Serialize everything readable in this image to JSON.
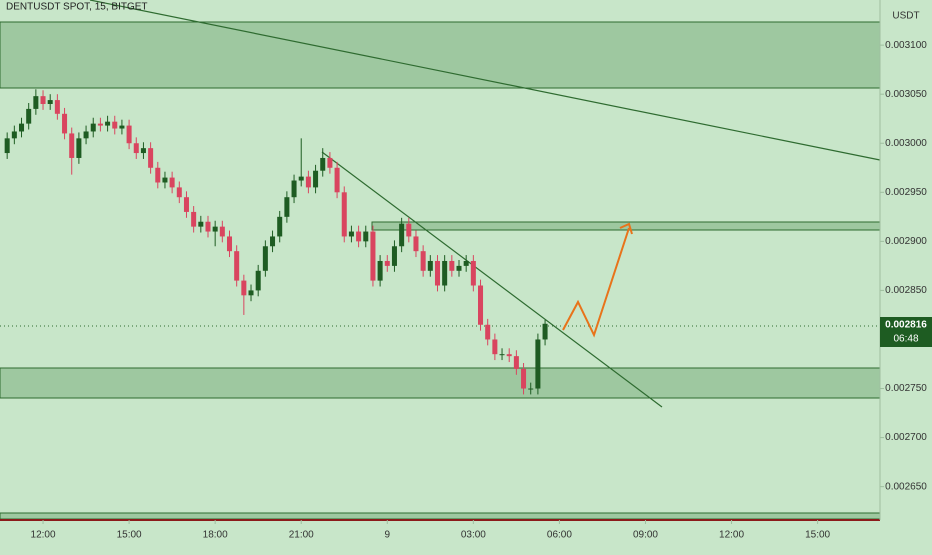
{
  "chart_data": {
    "type": "candlestick",
    "title": "DENTUSDT SPOT, 15, BITGET",
    "y_unit": "USDT",
    "last_price_label": "0.002816",
    "countdown": "06:48",
    "up_color": "#1e5c22",
    "down_color": "#d9455f",
    "xlim": [
      -6,
      116.7
    ],
    "xticks": [
      {
        "value": 0,
        "label": "12:00"
      },
      {
        "value": 12,
        "label": "15:00"
      },
      {
        "value": 24,
        "label": "18:00"
      },
      {
        "value": 36,
        "label": "21:00"
      },
      {
        "value": 48,
        "label": "9"
      },
      {
        "value": 60,
        "label": "03:00"
      },
      {
        "value": 72,
        "label": "06:00"
      },
      {
        "value": 84,
        "label": "09:00"
      },
      {
        "value": 96,
        "label": "12:00"
      },
      {
        "value": 108,
        "label": "15:00"
      }
    ],
    "ylim": [
      0.002616,
      0.003146
    ],
    "yticks": [
      {
        "value": 0.00265,
        "label": "0.002650"
      },
      {
        "value": 0.0027,
        "label": "0.002700"
      },
      {
        "value": 0.00275,
        "label": "0.002750"
      },
      {
        "value": 0.0028,
        "label": "0.002800"
      },
      {
        "value": 0.00285,
        "label": "0.002850"
      },
      {
        "value": 0.0029,
        "label": "0.002900"
      },
      {
        "value": 0.00295,
        "label": "0.002950"
      },
      {
        "value": 0.003,
        "label": "0.003000"
      },
      {
        "value": 0.00305,
        "label": "0.003050"
      },
      {
        "value": 0.0031,
        "label": "0.003100"
      }
    ],
    "x": [
      -5,
      -4,
      -3,
      -2,
      -1,
      0,
      1,
      2,
      3,
      4,
      5,
      6,
      7,
      8,
      9,
      10,
      11,
      12,
      13,
      14,
      15,
      16,
      17,
      18,
      19,
      20,
      21,
      22,
      23,
      24,
      25,
      26,
      27,
      28,
      29,
      30,
      31,
      32,
      33,
      34,
      35,
      36,
      37,
      38,
      39,
      40,
      41,
      42,
      43,
      44,
      45,
      46,
      47,
      48,
      49,
      50,
      51,
      52,
      53,
      54,
      55,
      56,
      57,
      58,
      59,
      60,
      61,
      62,
      63,
      64,
      65,
      66,
      67,
      68,
      69,
      70
    ],
    "open": [
      0.00299,
      0.003005,
      0.003012,
      0.00302,
      0.003035,
      0.003048,
      0.00304,
      0.003044,
      0.00303,
      0.00301,
      0.002985,
      0.003005,
      0.003012,
      0.00302,
      0.003018,
      0.003022,
      0.003015,
      0.003018,
      0.003,
      0.00299,
      0.002995,
      0.002975,
      0.00296,
      0.002965,
      0.002955,
      0.002945,
      0.00293,
      0.002915,
      0.00292,
      0.00291,
      0.002915,
      0.002905,
      0.00289,
      0.00286,
      0.002845,
      0.00285,
      0.00287,
      0.002895,
      0.002905,
      0.002925,
      0.002945,
      0.002962,
      0.002966,
      0.002955,
      0.002972,
      0.002985,
      0.002975,
      0.00295,
      0.002905,
      0.00291,
      0.0029,
      0.00291,
      0.00286,
      0.00288,
      0.002875,
      0.002895,
      0.002918,
      0.002905,
      0.00289,
      0.00287,
      0.00288,
      0.002855,
      0.00288,
      0.00287,
      0.002875,
      0.00288,
      0.002855,
      0.002815,
      0.0028,
      0.002785,
      0.002785,
      0.002783,
      0.00277,
      0.00275,
      0.00275,
      0.0028
    ],
    "high": [
      0.003011,
      0.003018,
      0.003026,
      0.003041,
      0.003055,
      0.003054,
      0.00305,
      0.00305,
      0.003036,
      0.003016,
      0.003011,
      0.003018,
      0.003026,
      0.003026,
      0.003028,
      0.003028,
      0.003024,
      0.003024,
      0.003006,
      0.003001,
      0.003001,
      0.002981,
      0.002971,
      0.002971,
      0.002961,
      0.002951,
      0.002936,
      0.002926,
      0.002926,
      0.002921,
      0.002921,
      0.002911,
      0.002896,
      0.002866,
      0.002856,
      0.002876,
      0.002901,
      0.002911,
      0.002931,
      0.002951,
      0.002968,
      0.003005,
      0.002972,
      0.002978,
      0.002995,
      0.002991,
      0.002981,
      0.002956,
      0.002916,
      0.002916,
      0.002916,
      0.002916,
      0.002886,
      0.002886,
      0.002901,
      0.002924,
      0.002924,
      0.002911,
      0.002896,
      0.002886,
      0.002886,
      0.002886,
      0.002886,
      0.002881,
      0.002886,
      0.002886,
      0.002861,
      0.002821,
      0.002806,
      0.002791,
      0.002791,
      0.002789,
      0.002776,
      0.002756,
      0.002806,
      0.00282
    ],
    "low": [
      0.002984,
      0.002999,
      0.003006,
      0.003014,
      0.003029,
      0.003034,
      0.003034,
      0.003024,
      0.003004,
      0.002968,
      0.002979,
      0.002999,
      0.003006,
      0.003012,
      0.003012,
      0.003009,
      0.003009,
      0.002994,
      0.002984,
      0.002984,
      0.002969,
      0.002954,
      0.002954,
      0.002949,
      0.002939,
      0.002924,
      0.002909,
      0.002909,
      0.002904,
      0.002895,
      0.002899,
      0.002884,
      0.002854,
      0.002825,
      0.002839,
      0.002844,
      0.002864,
      0.002889,
      0.002899,
      0.002919,
      0.002939,
      0.002956,
      0.002949,
      0.002949,
      0.002966,
      0.002969,
      0.002944,
      0.002899,
      0.002899,
      0.002894,
      0.002894,
      0.002854,
      0.002854,
      0.002869,
      0.002869,
      0.002889,
      0.002899,
      0.002884,
      0.002864,
      0.002864,
      0.002849,
      0.002849,
      0.002864,
      0.002864,
      0.002869,
      0.002849,
      0.002809,
      0.002794,
      0.002779,
      0.002779,
      0.002777,
      0.002764,
      0.002744,
      0.002744,
      0.002744,
      0.002794
    ],
    "close": [
      0.003005,
      0.003012,
      0.00302,
      0.003035,
      0.003048,
      0.00304,
      0.003044,
      0.00303,
      0.00301,
      0.002985,
      0.003005,
      0.003012,
      0.00302,
      0.003018,
      0.003022,
      0.003015,
      0.003018,
      0.003,
      0.00299,
      0.002995,
      0.002975,
      0.00296,
      0.002965,
      0.002955,
      0.002945,
      0.00293,
      0.002915,
      0.00292,
      0.00291,
      0.002915,
      0.002905,
      0.00289,
      0.00286,
      0.002845,
      0.00285,
      0.00287,
      0.002895,
      0.002905,
      0.002925,
      0.002945,
      0.002962,
      0.002966,
      0.002955,
      0.002972,
      0.002985,
      0.002975,
      0.00295,
      0.002905,
      0.00291,
      0.0029,
      0.00291,
      0.00286,
      0.00288,
      0.002875,
      0.002895,
      0.002918,
      0.002905,
      0.00289,
      0.00287,
      0.00288,
      0.002855,
      0.00288,
      0.00287,
      0.002875,
      0.00288,
      0.002855,
      0.002815,
      0.0028,
      0.002785,
      0.002785,
      0.002783,
      0.00277,
      0.00275,
      0.00275,
      0.0028,
      0.002816
    ]
  }
}
